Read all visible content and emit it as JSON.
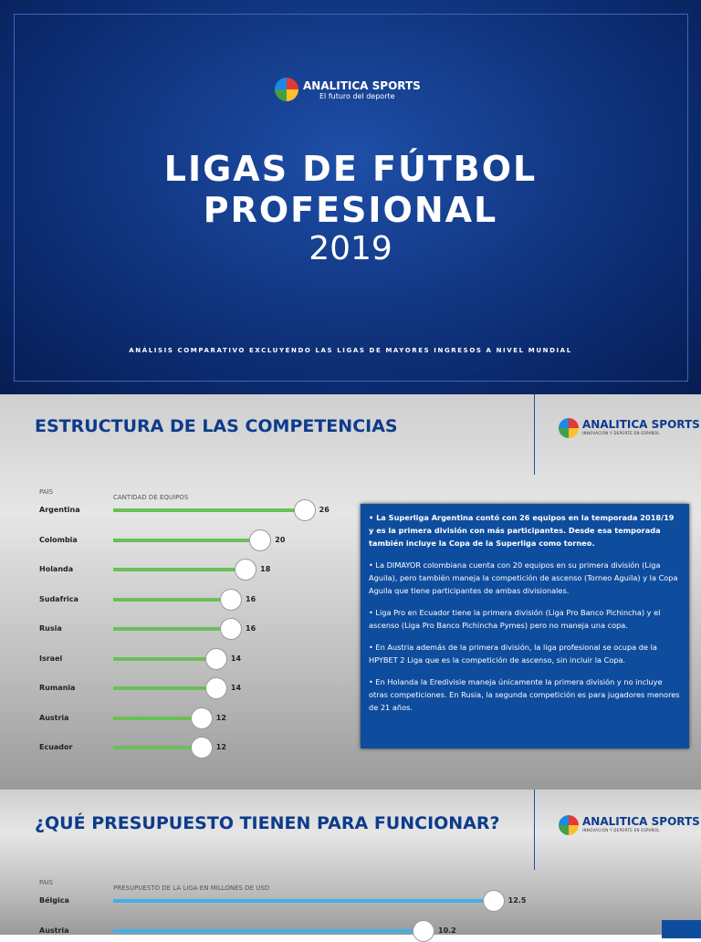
{
  "cover": {
    "brand": "ANALITICA SPORTS",
    "tagline": "El futuro del deporte",
    "title_lines": [
      "LIGAS DE FÚTBOL",
      "PROFESIONAL"
    ],
    "year": "2019",
    "subtitle": "ANÁLISIS COMPARATIVO EXCLUYENDO LAS LIGAS DE MAYORES INGRESOS A NIVEL MUNDIAL"
  },
  "sections": [
    {
      "title": "ESTRUCTURA DE LAS COMPETENCIAS",
      "brand": "ANALITICA SPORTS",
      "brand_tagline": "INNOVACIÓN Y DEPORTE EN ESPAÑOL",
      "chart": {
        "type": "bar",
        "category_label": "PAÍS",
        "value_label": "CANTIDAD DE EQUIPOS",
        "categories": [
          "Argentina",
          "Colombia",
          "Holanda",
          "Sudafrica",
          "Rusia",
          "Israel",
          "Rumania",
          "Austria",
          "Ecuador"
        ],
        "values": [
          26,
          20,
          18,
          16,
          16,
          14,
          14,
          12,
          12
        ],
        "xlim": [
          0,
          32
        ],
        "color": "#6bbf59"
      },
      "notes": [
        "• La Superliga Argentina contó con 26 equipos en la temporada 2018/19 y es la primera división con más participantes. Desde esa temporada también incluye la Copa de la Superliga como torneo.",
        "• La DIMAYOR colombiana cuenta con 20 equipos en su primera división (Liga Aguila), pero también maneja la competición de ascenso (Torneo Aguila) y la Copa Aguila que tiene participantes de ambas divisionales.",
        "• Liga Pro en Ecuador tiene la primera división (Liga Pro Banco Pichincha) y el ascenso (Liga Pro Banco Pichincha Pymes) pero no maneja una copa.",
        "• En Austria además de la primera división, la liga profesional se ocupa de la HPYBET 2 Liga que es la competición de ascenso, sin incluir la Copa.",
        "• En Holanda la Eredivisie maneja únicamente la primera división y no incluye otras competiciones. En Rusia, la segunda competición es para jugadores menores de 21 años."
      ]
    },
    {
      "title": "¿QUÉ PRESUPUESTO TIENEN PARA FUNCIONAR?",
      "brand": "ANALITICA SPORTS",
      "brand_tagline": "INNOVACIÓN Y DEPORTE EN ESPAÑOL",
      "chart": {
        "type": "bar",
        "category_label": "PAÍS",
        "value_label": "PRESUPUESTO DE LA LIGA EN MILLONES DE USD",
        "categories": [
          "Bélgica",
          "Austria"
        ],
        "values": [
          12.5,
          10.2
        ],
        "value_labels": [
          "12.5",
          "10.2"
        ],
        "xlim": [
          0,
          15
        ],
        "color": "#3fb2e6"
      }
    }
  ]
}
